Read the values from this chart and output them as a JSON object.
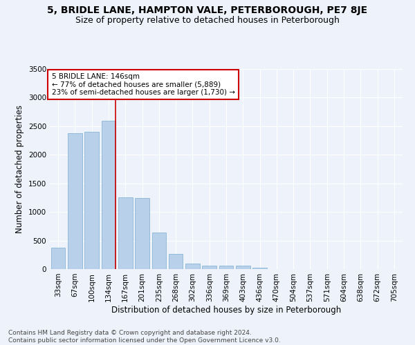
{
  "title": "5, BRIDLE LANE, HAMPTON VALE, PETERBOROUGH, PE7 8JE",
  "subtitle": "Size of property relative to detached houses in Peterborough",
  "xlabel": "Distribution of detached houses by size in Peterborough",
  "ylabel": "Number of detached properties",
  "footnote1": "Contains HM Land Registry data © Crown copyright and database right 2024.",
  "footnote2": "Contains public sector information licensed under the Open Government Licence v3.0.",
  "annotation_line1": "5 BRIDLE LANE: 146sqm",
  "annotation_line2": "← 77% of detached houses are smaller (5,889)",
  "annotation_line3": "23% of semi-detached houses are larger (1,730) →",
  "categories": [
    "33sqm",
    "67sqm",
    "100sqm",
    "134sqm",
    "167sqm",
    "201sqm",
    "235sqm",
    "268sqm",
    "302sqm",
    "336sqm",
    "369sqm",
    "403sqm",
    "436sqm",
    "470sqm",
    "504sqm",
    "537sqm",
    "571sqm",
    "604sqm",
    "638sqm",
    "672sqm",
    "705sqm"
  ],
  "values": [
    380,
    2380,
    2400,
    2600,
    1250,
    1240,
    640,
    260,
    100,
    65,
    55,
    55,
    30,
    0,
    0,
    0,
    0,
    0,
    0,
    0,
    0
  ],
  "bar_color": "#b8d0ea",
  "bar_edge_color": "#7aafd4",
  "vline_color": "#cc0000",
  "annotation_box_color": "#cc0000",
  "background_color": "#eef2fa",
  "ylim": [
    0,
    3500
  ],
  "yticks": [
    0,
    500,
    1000,
    1500,
    2000,
    2500,
    3000,
    3500
  ],
  "grid_color": "#ffffff",
  "title_fontsize": 10,
  "subtitle_fontsize": 9,
  "axis_label_fontsize": 8.5,
  "tick_fontsize": 7.5,
  "footnote_fontsize": 6.5
}
